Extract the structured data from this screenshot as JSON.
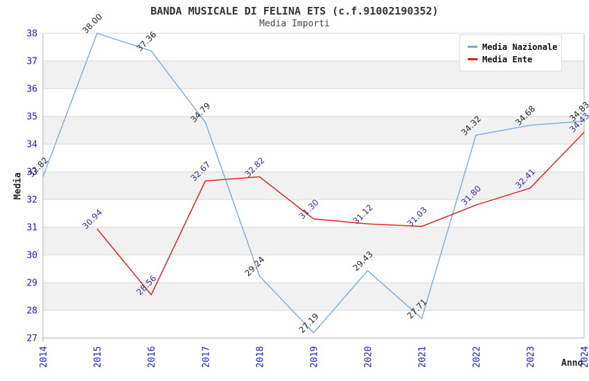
{
  "chart_data": {
    "type": "line",
    "title": "BANDA MUSICALE DI FELINA ETS (c.f.91002190352)",
    "subtitle": "Media Importi",
    "xlabel": "Anno",
    "ylabel": "Media",
    "x": [
      2014,
      2015,
      2016,
      2017,
      2018,
      2019,
      2020,
      2021,
      2022,
      2023,
      2024
    ],
    "xlim": [
      2014,
      2024
    ],
    "ylim": [
      27,
      38
    ],
    "ytick_step": 1,
    "grid": true,
    "legend_position": "top-right",
    "series": [
      {
        "name": "Media Nazionale",
        "color": "#74ACE4",
        "label_color": "#2a2a2a",
        "x": [
          2014,
          2015,
          2016,
          2017,
          2018,
          2019,
          2020,
          2021,
          2022,
          2023,
          2024
        ],
        "values": [
          32.82,
          38.0,
          37.36,
          34.79,
          29.24,
          27.19,
          29.43,
          27.71,
          34.32,
          34.68,
          34.83
        ]
      },
      {
        "name": "Media Ente",
        "color": "#EE1111",
        "label_color": "#333399",
        "x": [
          2015,
          2016,
          2017,
          2018,
          2019,
          2020,
          2021,
          2022,
          2023,
          2024
        ],
        "values": [
          30.94,
          28.56,
          32.67,
          32.82,
          31.3,
          31.12,
          31.03,
          31.8,
          32.41,
          34.43
        ]
      }
    ],
    "colors": {
      "band_white": "#ffffff",
      "band_gray": "#f1f1f1",
      "grid": "#d8d8d8",
      "frame": "#b3b3b3",
      "tick_label": "#1a1acc"
    }
  }
}
